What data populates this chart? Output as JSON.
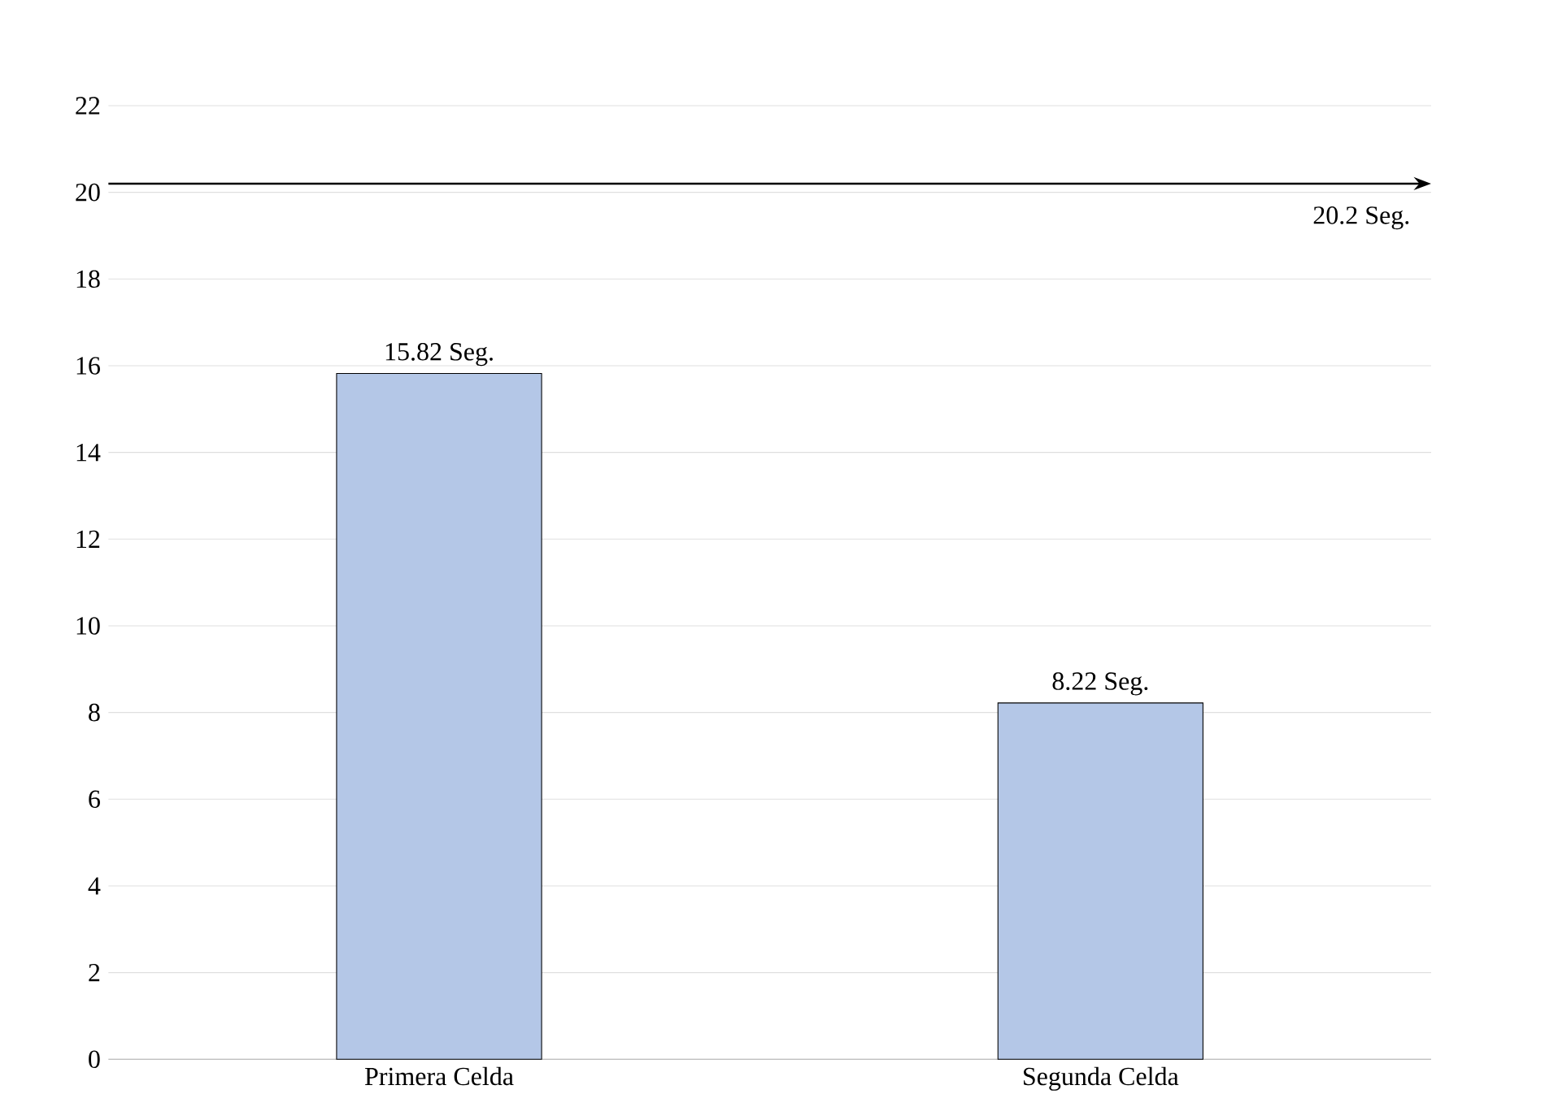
{
  "chart_data": {
    "type": "bar",
    "categories": [
      "Primera Celda",
      "Segunda Celda"
    ],
    "values": [
      15.82,
      8.22
    ],
    "value_labels": [
      "15.82  Seg.",
      "8.22 Seg."
    ],
    "color": "#b4c7e7",
    "ylim": [
      0,
      22
    ],
    "yticks": [
      0,
      2,
      4,
      6,
      8,
      10,
      12,
      14,
      16,
      18,
      20,
      22
    ],
    "grid": "y",
    "ref_lines": [
      {
        "axis": "y",
        "value": 20.2,
        "label": "20.2 Seg.",
        "color": "#000000"
      }
    ]
  }
}
